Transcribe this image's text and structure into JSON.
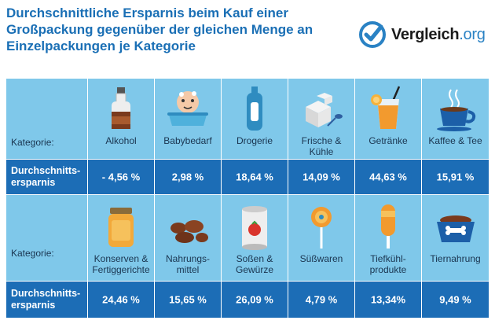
{
  "title": "Durchschnittliche Ersparnis beim Kauf einer Großpackung gegenüber der gleichen Menge an Einzelpackungen je Kategorie",
  "logo": {
    "name": "Vergleich",
    "tld": ".org"
  },
  "colors": {
    "title": "#1a6fb5",
    "category_bg": "#7fc8ea",
    "value_bg": "#1c6db6"
  },
  "row_labels": {
    "category": "Kategorie:",
    "savings": "Durchschnitts-ersparnis"
  },
  "table1": {
    "items": [
      {
        "name": "Alkohol",
        "icon": "liquor-bottle-icon",
        "value": "- 4,56 %"
      },
      {
        "name": "Babybedarf",
        "icon": "baby-bath-icon",
        "value": "2,98 %"
      },
      {
        "name": "Drogerie",
        "icon": "shampoo-bottle-icon",
        "value": "18,64 %"
      },
      {
        "name": "Frische & Kühle",
        "icon": "sugar-cubes-icon",
        "value": "14,09 %"
      },
      {
        "name": "Getränke",
        "icon": "juice-glass-icon",
        "value": "44,63 %"
      },
      {
        "name": "Kaffee & Tee",
        "icon": "coffee-cup-icon",
        "value": "15,91 %"
      }
    ]
  },
  "table2": {
    "items": [
      {
        "name": "Konserven & Fertiggerichte",
        "icon": "jar-icon",
        "value": "24,46 %"
      },
      {
        "name": "Nahrungs-mittel",
        "icon": "potatoes-icon",
        "value": "15,65 %"
      },
      {
        "name": "Soßen & Gewürze",
        "icon": "tomato-can-icon",
        "value": "26,09 %"
      },
      {
        "name": "Süßwaren",
        "icon": "lollipop-icon",
        "value": "4,79 %"
      },
      {
        "name": "Tiefkühl-produkte",
        "icon": "popsicle-icon",
        "value": "13,34%"
      },
      {
        "name": "Tiernahrung",
        "icon": "pet-bowl-icon",
        "value": "9,49 %"
      }
    ]
  }
}
